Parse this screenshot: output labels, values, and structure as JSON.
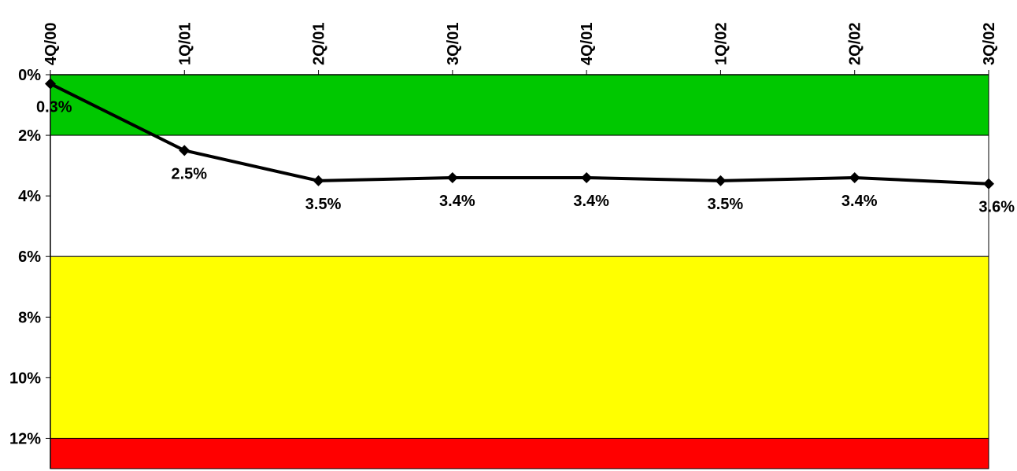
{
  "chart_data": {
    "type": "line",
    "title": "",
    "xlabel": "",
    "ylabel": "",
    "inverted_y": true,
    "ylim": [
      0,
      13
    ],
    "y_ticks": [
      0,
      2,
      4,
      6,
      8,
      10,
      12
    ],
    "y_tick_labels": [
      "0%",
      "2%",
      "4%",
      "6%",
      "8%",
      "10%",
      "12%"
    ],
    "categories": [
      "4Q/00",
      "1Q/01",
      "2Q/01",
      "3Q/01",
      "4Q/01",
      "1Q/02",
      "2Q/02",
      "3Q/02"
    ],
    "values": [
      0.3,
      2.5,
      3.5,
      3.4,
      3.4,
      3.5,
      3.4,
      3.6
    ],
    "data_labels": [
      "0.3%",
      "2.5%",
      "3.5%",
      "3.4%",
      "3.4%",
      "3.5%",
      "3.4%",
      "3.6%"
    ],
    "bands": [
      {
        "from": 0,
        "to": 2,
        "color": "#00c800"
      },
      {
        "from": 2,
        "to": 6,
        "color": "#ffffff"
      },
      {
        "from": 6,
        "to": 12,
        "color": "#ffff00"
      },
      {
        "from": 12,
        "to": 13,
        "color": "#ff0000"
      }
    ],
    "line_color": "#000000",
    "legend": "none",
    "grid": false
  }
}
